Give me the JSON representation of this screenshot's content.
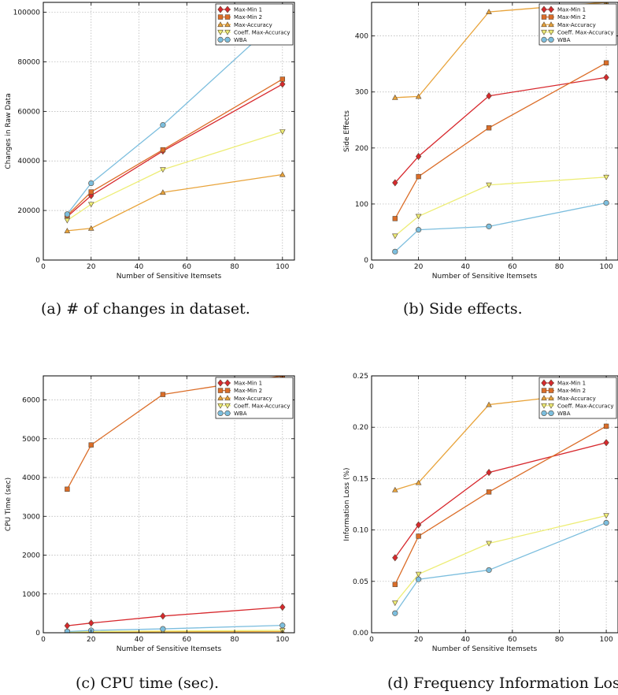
{
  "captions": {
    "a": "(a) # of changes in dataset.",
    "b": "(b) Side effects.",
    "c": "(c) CPU time (sec).",
    "d": "(d) Frequency Information Loss"
  },
  "series_styles": [
    {
      "name": "Max-Min 1",
      "color": "#d7282d",
      "marker": "diamond"
    },
    {
      "name": "Max-Min 2",
      "color": "#db6d28",
      "marker": "square"
    },
    {
      "name": "Max-Accuracy",
      "color": "#e8a33a",
      "marker": "triangle-up"
    },
    {
      "name": "Coeff. Max-Accuracy",
      "color": "#eded75",
      "marker": "triangle-down"
    },
    {
      "name": "WBA",
      "color": "#7cbede",
      "marker": "circle"
    }
  ],
  "chart_data": [
    {
      "type": "line",
      "xlabel": "Number of Sensitive Itemsets",
      "ylabel": "Changes in Raw Data",
      "x": [
        10,
        20,
        50,
        100
      ],
      "xlim": [
        0,
        105
      ],
      "ylim": [
        0,
        104000
      ],
      "xticks": [
        0,
        20,
        40,
        60,
        80,
        100
      ],
      "yticks": [
        0,
        20000,
        40000,
        60000,
        80000,
        100000
      ],
      "grid": true,
      "legend": "top-right",
      "series": [
        {
          "name": "Max-Min 1",
          "values": [
            17500,
            26000,
            44000,
            71000
          ]
        },
        {
          "name": "Max-Min 2",
          "values": [
            18000,
            27500,
            44500,
            73000
          ]
        },
        {
          "name": "Max-Accuracy",
          "values": [
            11800,
            12800,
            27300,
            34500
          ]
        },
        {
          "name": "Coeff. Max-Accuracy",
          "values": [
            16000,
            22500,
            36500,
            51800
          ]
        },
        {
          "name": "WBA",
          "values": [
            18500,
            31000,
            54500,
            98500
          ]
        }
      ]
    },
    {
      "type": "line",
      "xlabel": "Number of Sensitive Itemsets",
      "ylabel": "Side Effects",
      "x": [
        10,
        20,
        50,
        100
      ],
      "xlim": [
        0,
        105
      ],
      "ylim": [
        0,
        460
      ],
      "xticks": [
        0,
        20,
        40,
        60,
        80,
        100
      ],
      "yticks": [
        0,
        100,
        200,
        300,
        400
      ],
      "grid": true,
      "legend": "top-right",
      "series": [
        {
          "name": "Max-Min 1",
          "values": [
            138,
            185,
            293,
            326
          ]
        },
        {
          "name": "Max-Min 2",
          "values": [
            74,
            149,
            236,
            352
          ]
        },
        {
          "name": "Max-Accuracy",
          "values": [
            290,
            292,
            443,
            460
          ]
        },
        {
          "name": "Coeff. Max-Accuracy",
          "values": [
            43,
            78,
            134,
            148
          ]
        },
        {
          "name": "WBA",
          "values": [
            15,
            54,
            60,
            102
          ]
        }
      ]
    },
    {
      "type": "line",
      "xlabel": "Number of Sensitive Itemsets",
      "ylabel": "CPU Time (sec)",
      "x": [
        10,
        20,
        50,
        100
      ],
      "xlim": [
        0,
        105
      ],
      "ylim": [
        0,
        6620
      ],
      "xticks": [
        0,
        20,
        40,
        60,
        80,
        100
      ],
      "yticks": [
        0,
        1000,
        2000,
        3000,
        4000,
        5000,
        6000
      ],
      "grid": true,
      "legend": "top-right",
      "series": [
        {
          "name": "Max-Min 1",
          "values": [
            180,
            250,
            430,
            660
          ]
        },
        {
          "name": "Max-Min 2",
          "values": [
            3700,
            4840,
            6140,
            6620
          ]
        },
        {
          "name": "Max-Accuracy",
          "values": [
            10,
            15,
            25,
            30
          ]
        },
        {
          "name": "Coeff. Max-Accuracy",
          "values": [
            20,
            30,
            45,
            60
          ]
        },
        {
          "name": "WBA",
          "values": [
            30,
            60,
            100,
            190
          ]
        }
      ]
    },
    {
      "type": "line",
      "xlabel": "Number of Sensitive Itemsets",
      "ylabel": "Information Loss (%)",
      "x": [
        10,
        20,
        50,
        100
      ],
      "xlim": [
        0,
        105
      ],
      "ylim": [
        0,
        0.25
      ],
      "xticks": [
        0,
        20,
        40,
        60,
        80,
        100
      ],
      "yticks": [
        0,
        0.05,
        0.1,
        0.15,
        0.2,
        0.25
      ],
      "ytick_labels": [
        "0.00",
        "0.05",
        "0.10",
        "0.15",
        "0.20",
        "0.25"
      ],
      "grid": true,
      "legend": "top-right",
      "series": [
        {
          "name": "Max-Min 1",
          "values": [
            0.073,
            0.105,
            0.156,
            0.185
          ]
        },
        {
          "name": "Max-Min 2",
          "values": [
            0.047,
            0.094,
            0.137,
            0.201
          ]
        },
        {
          "name": "Max-Accuracy",
          "values": [
            0.139,
            0.146,
            0.222,
            0.235
          ]
        },
        {
          "name": "Coeff. Max-Accuracy",
          "values": [
            0.029,
            0.057,
            0.087,
            0.114
          ]
        },
        {
          "name": "WBA",
          "values": [
            0.019,
            0.052,
            0.061,
            0.107
          ]
        }
      ]
    }
  ]
}
